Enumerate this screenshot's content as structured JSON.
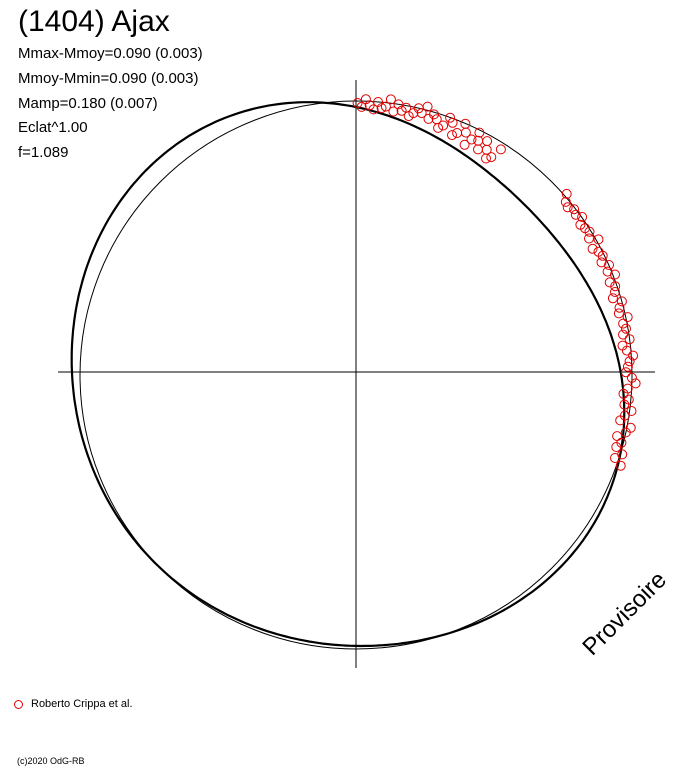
{
  "chart_data": {
    "type": "scatter",
    "title": "(1404) Ajax",
    "stats": [
      "Mmax-Mmoy=0.090 (0.003)",
      "Mmoy-Mmin=0.090 (0.003)",
      "Mamp=0.180 (0.007)",
      "Eclat^1.00",
      "f=1.089"
    ],
    "legend": [
      {
        "name": "Roberto Crippa et al.",
        "color": "#e00000",
        "marker": "open-circle"
      }
    ],
    "watermark": "Provisoire",
    "copyright": "(c)2020 OdG-RB",
    "axes": {
      "grid": false,
      "crosshair": true,
      "reference_circle": true
    },
    "points": [
      [
        1.0,
        138
      ],
      [
        1.015,
        132
      ],
      [
        1.03,
        130
      ],
      [
        1.045,
        134
      ],
      [
        1.06,
        138
      ],
      [
        1.075,
        132
      ],
      [
        1.09,
        136
      ],
      [
        1.1,
        140
      ],
      [
        1.115,
        135
      ],
      [
        1.13,
        131
      ],
      [
        1.145,
        137
      ],
      [
        1.16,
        141
      ],
      [
        1.175,
        135
      ],
      [
        1.19,
        133
      ],
      [
        1.205,
        139
      ],
      [
        1.22,
        141
      ],
      [
        1.235,
        136
      ],
      [
        1.25,
        134
      ],
      [
        1.265,
        138
      ],
      [
        1.28,
        140
      ],
      [
        1.295,
        137
      ],
      [
        1.31,
        143
      ],
      [
        1.325,
        139
      ],
      [
        1.34,
        141
      ],
      [
        1.355,
        138
      ],
      [
        1.37,
        136
      ],
      [
        1.385,
        140
      ],
      [
        1.4,
        138
      ],
      [
        1.415,
        141
      ],
      [
        1.43,
        137
      ],
      [
        1.445,
        143
      ],
      [
        1.46,
        139
      ],
      [
        1.475,
        138
      ],
      [
        1.49,
        141
      ],
      [
        1.505,
        137
      ],
      [
        1.52,
        139
      ],
      [
        1.535,
        142
      ],
      [
        1.55,
        138
      ],
      [
        1.565,
        140
      ],
      [
        -0.33,
        144
      ],
      [
        -0.31,
        140
      ],
      [
        -0.29,
        143
      ],
      [
        -0.27,
        139
      ],
      [
        -0.25,
        141
      ],
      [
        -0.23,
        138
      ],
      [
        -0.21,
        142
      ],
      [
        -0.19,
        144
      ],
      [
        -0.17,
        138
      ],
      [
        -0.15,
        140
      ],
      [
        -0.13,
        143
      ],
      [
        -0.11,
        139
      ],
      [
        -0.09,
        141
      ],
      [
        -0.07,
        138
      ],
      [
        -0.05,
        140
      ],
      [
        -0.03,
        144
      ],
      [
        -0.01,
        142
      ],
      [
        0.01,
        139
      ],
      [
        0.03,
        140
      ],
      [
        0.05,
        141
      ],
      [
        0.07,
        143
      ],
      [
        0.09,
        140
      ],
      [
        0.11,
        138
      ],
      [
        0.13,
        142
      ],
      [
        0.15,
        139
      ],
      [
        0.17,
        141
      ],
      [
        0.19,
        140
      ],
      [
        0.21,
        143
      ],
      [
        0.23,
        139
      ],
      [
        0.25,
        140
      ],
      [
        0.27,
        142
      ],
      [
        0.29,
        138
      ],
      [
        0.31,
        140
      ],
      [
        0.33,
        141
      ],
      [
        0.35,
        139
      ],
      [
        0.37,
        143
      ],
      [
        0.39,
        140
      ],
      [
        0.41,
        142
      ],
      [
        0.43,
        139
      ],
      [
        0.45,
        141
      ],
      [
        0.47,
        140
      ],
      [
        0.49,
        138
      ],
      [
        0.51,
        143
      ],
      [
        0.53,
        139
      ],
      [
        0.55,
        141
      ],
      [
        0.57,
        140
      ],
      [
        0.59,
        139
      ],
      [
        0.61,
        142
      ],
      [
        0.63,
        140
      ],
      [
        0.65,
        141
      ],
      [
        0.67,
        139
      ],
      [
        0.69,
        140
      ],
      [
        0.71,
        143
      ]
    ]
  }
}
